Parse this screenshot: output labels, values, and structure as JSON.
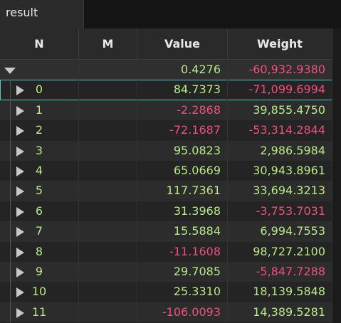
{
  "tab": {
    "label": "result"
  },
  "columns": {
    "n": "N",
    "m": "M",
    "value": "Value",
    "weight": "Weight"
  },
  "summary": {
    "value": "0.4276",
    "weight": "-60,932.9380"
  },
  "rows": [
    {
      "n": "0",
      "value": "84.7373",
      "weight": "-71,099.6994",
      "value_sign": "pos",
      "weight_sign": "neg",
      "selected": true
    },
    {
      "n": "1",
      "value": "-2.2868",
      "weight": "39,855.4750",
      "value_sign": "neg",
      "weight_sign": "pos"
    },
    {
      "n": "2",
      "value": "-72.1687",
      "weight": "-53,314.2844",
      "value_sign": "neg",
      "weight_sign": "neg"
    },
    {
      "n": "3",
      "value": "95.0823",
      "weight": "2,986.5984",
      "value_sign": "pos",
      "weight_sign": "pos"
    },
    {
      "n": "4",
      "value": "65.0669",
      "weight": "30,943.8961",
      "value_sign": "pos",
      "weight_sign": "pos"
    },
    {
      "n": "5",
      "value": "117.7361",
      "weight": "33,694.3213",
      "value_sign": "pos",
      "weight_sign": "pos"
    },
    {
      "n": "6",
      "value": "31.3968",
      "weight": "-3,753.7031",
      "value_sign": "pos",
      "weight_sign": "neg"
    },
    {
      "n": "7",
      "value": "15.5884",
      "weight": "6,994.7553",
      "value_sign": "pos",
      "weight_sign": "pos"
    },
    {
      "n": "8",
      "value": "-11.1608",
      "weight": "98,727.2100",
      "value_sign": "neg",
      "weight_sign": "pos"
    },
    {
      "n": "9",
      "value": "29.7085",
      "weight": "-5,847.7288",
      "value_sign": "pos",
      "weight_sign": "neg"
    },
    {
      "n": "10",
      "value": "25.3310",
      "weight": "18,139.5848",
      "value_sign": "pos",
      "weight_sign": "pos"
    },
    {
      "n": "11",
      "value": "-106.0093",
      "weight": "14,389.5281",
      "value_sign": "neg",
      "weight_sign": "pos"
    }
  ],
  "colors": {
    "positive": "#b8e986",
    "negative": "#ef4f7e",
    "selection": "#5fc3c3"
  }
}
